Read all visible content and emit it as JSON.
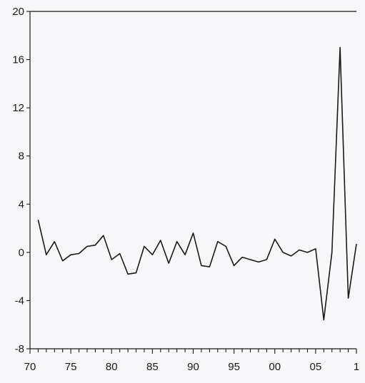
{
  "chart_data": {
    "type": "line",
    "title": "",
    "xlabel": "",
    "ylabel": "",
    "x": [
      1971,
      1972,
      1973,
      1974,
      1975,
      1976,
      1977,
      1978,
      1979,
      1980,
      1981,
      1982,
      1983,
      1984,
      1985,
      1986,
      1987,
      1988,
      1989,
      1990,
      1991,
      1992,
      1993,
      1994,
      1995,
      1996,
      1997,
      1998,
      1999,
      2000,
      2001,
      2002,
      2003,
      2004,
      2005,
      2006,
      2007,
      2008,
      2009,
      2010
    ],
    "series": [
      {
        "values": [
          2.7,
          -0.2,
          0.9,
          -0.7,
          -0.2,
          -0.1,
          0.5,
          0.6,
          1.4,
          -0.6,
          -0.1,
          -1.8,
          -1.7,
          0.5,
          -0.2,
          1.0,
          -0.9,
          0.9,
          -0.2,
          1.6,
          -1.1,
          -1.2,
          0.9,
          0.5,
          -1.1,
          -0.4,
          -0.6,
          -0.8,
          -0.6,
          1.1,
          0.0,
          -0.3,
          0.2,
          0.0,
          0.3,
          -5.6,
          0.0,
          17.0,
          -3.8,
          0.7
        ]
      }
    ],
    "xlim": [
      1970,
      2010
    ],
    "ylim": [
      -8,
      20
    ],
    "x_ticks": [
      1970,
      1975,
      1980,
      1985,
      1990,
      1995,
      2000,
      2005,
      2010
    ],
    "x_tick_labels": [
      "70",
      "75",
      "80",
      "85",
      "90",
      "95",
      "00",
      "05",
      "1"
    ],
    "y_ticks": [
      -8,
      -4,
      0,
      4,
      8,
      12,
      16,
      20
    ],
    "y_tick_labels": [
      "-8",
      "-4",
      "0",
      "4",
      "8",
      "12",
      "16",
      "20"
    ],
    "grid": false,
    "legend": "none",
    "colors": {
      "line": "#1a1a1a",
      "axis": "#1a1a1a",
      "background": "#f7f7f9"
    }
  }
}
